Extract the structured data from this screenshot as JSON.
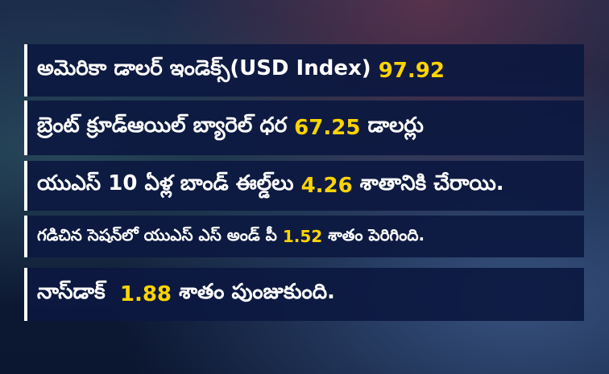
{
  "rows": [
    {
      "before": "అమెరికా డాలర్ ఇండెక్స్(USD Index) ",
      "highlight": "97.92"
    },
    {
      "before": "బ్రెంట్ క్రూడ్ఆయిల్ బ్యారెల్ ధర ",
      "highlight": "67.25",
      "after": " డాలర్లు"
    },
    {
      "before": "యుఎస్ 10 ఏళ్ల బాండ్ ఈల్డ్‌లు ",
      "highlight": "4.26",
      "after": " శాతానికి చేరాయి."
    },
    {
      "before": "గడిచిన సెషన్‌లో యుఎస్ ఎస్ అండ్ పీ ",
      "highlight": "1.52",
      "after": " శాతం పెరిగింది."
    },
    {
      "before": "నాస్‌డాక్  ",
      "highlight": "1.88",
      "after": " శాతం పుంజుకుంది."
    }
  ]
}
